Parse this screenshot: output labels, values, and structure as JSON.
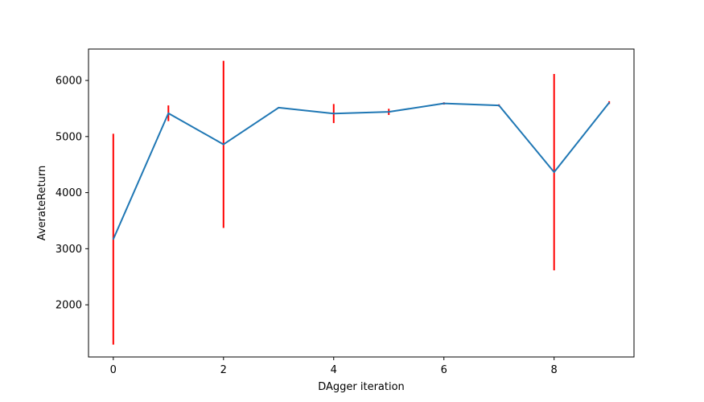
{
  "chart_data": {
    "type": "line",
    "title": "",
    "xlabel": "DAgger iteration",
    "ylabel": "AverateReturn",
    "x": [
      0,
      1,
      2,
      3,
      4,
      5,
      6,
      7,
      8,
      9
    ],
    "series": [
      {
        "values": [
          3170,
          5415,
          4860,
          5515,
          5410,
          5440,
          5590,
          5555,
          4365,
          5605
        ],
        "error": [
          1880,
          140,
          1490,
          10,
          170,
          55,
          20,
          20,
          1750,
          25
        ]
      }
    ],
    "xlim": [
      -0.45,
      9.45
    ],
    "ylim": [
      1070,
      6560
    ],
    "xticks": [
      0,
      2,
      4,
      6,
      8
    ],
    "yticks": [
      2000,
      3000,
      4000,
      5000,
      6000
    ],
    "grid": false,
    "line_color": "#1f77b4",
    "errorbar_color": "#ff0000"
  }
}
